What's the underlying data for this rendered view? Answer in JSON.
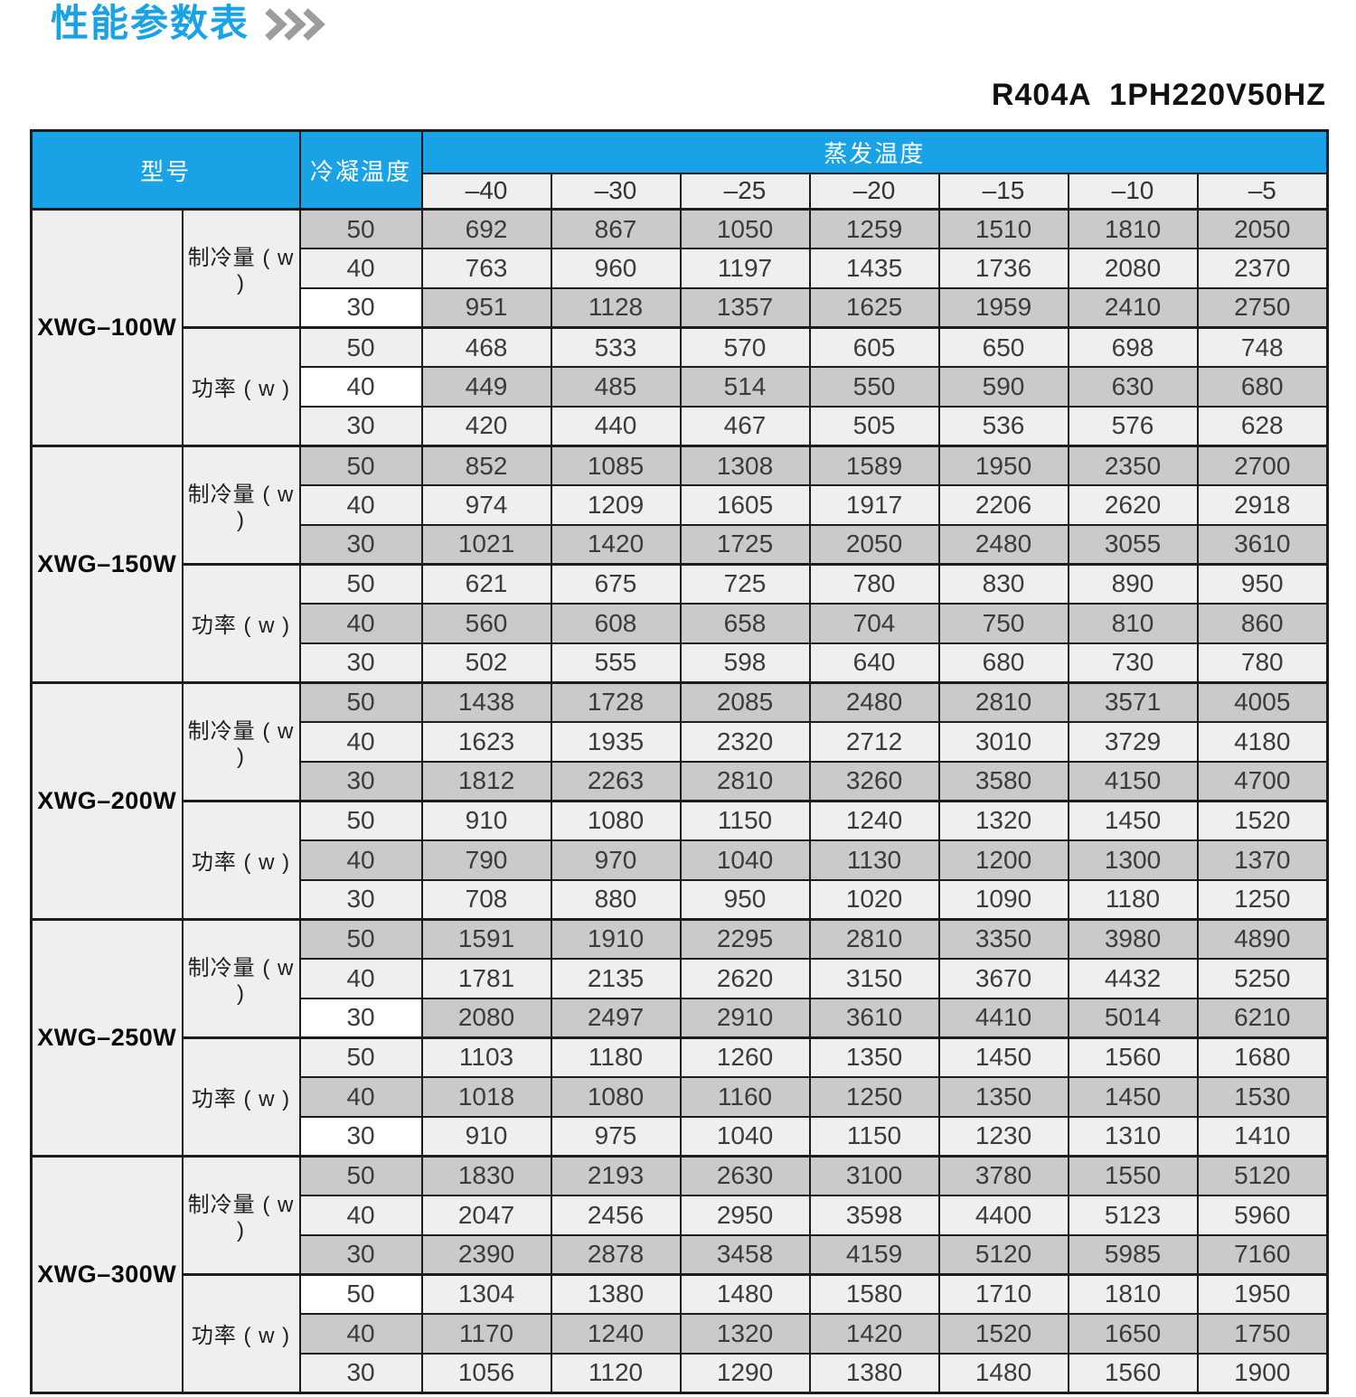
{
  "page": {
    "title": "性能参数表",
    "subtitle": "R404A  1PH220V50HZ"
  },
  "icons": {
    "title_chevrons": "triple-chevron-right"
  },
  "colors": {
    "accent_blue": "#19a3e6",
    "chevron_gray": "#9c9c9c",
    "row_gray": "#cacaca",
    "row_light": "#f0efef",
    "cell_white": "#ffffff",
    "border_black": "#1c1c1c"
  },
  "table": {
    "header": {
      "model": "型号",
      "condensing_temp": "冷凝温度",
      "evaporating_temp": "蒸发温度",
      "evap_temps": [
        "–40",
        "–30",
        "–25",
        "–20",
        "–15",
        "–10",
        "–5"
      ]
    },
    "models": [
      {
        "name": "XWG–100W",
        "cooling": {
          "label": "制冷量 ( w )",
          "rows": [
            {
              "temp": "50",
              "values": [
                692,
                867,
                1050,
                1259,
                1510,
                1810,
                2050
              ]
            },
            {
              "temp": "40",
              "values": [
                763,
                960,
                1197,
                1435,
                1736,
                2080,
                2370
              ]
            },
            {
              "temp": "30",
              "white_temp": true,
              "values": [
                951,
                1128,
                1357,
                1625,
                1959,
                2410,
                2750
              ]
            }
          ]
        },
        "power": {
          "label": "功率 ( w )",
          "rows": [
            {
              "temp": "50",
              "values": [
                468,
                533,
                570,
                605,
                650,
                698,
                748
              ]
            },
            {
              "temp": "40",
              "white_temp": true,
              "values": [
                449,
                485,
                514,
                550,
                590,
                630,
                680
              ]
            },
            {
              "temp": "30",
              "values": [
                420,
                440,
                467,
                505,
                536,
                576,
                628
              ]
            }
          ]
        }
      },
      {
        "name": "XWG–150W",
        "cooling": {
          "label": "制冷量 ( w )",
          "rows": [
            {
              "temp": "50",
              "values": [
                852,
                1085,
                1308,
                1589,
                1950,
                2350,
                2700
              ]
            },
            {
              "temp": "40",
              "values": [
                974,
                1209,
                1605,
                1917,
                2206,
                2620,
                2918
              ]
            },
            {
              "temp": "30",
              "values": [
                1021,
                1420,
                1725,
                2050,
                2480,
                3055,
                3610
              ]
            }
          ]
        },
        "power": {
          "label": "功率 ( w )",
          "rows": [
            {
              "temp": "50",
              "values": [
                621,
                675,
                725,
                780,
                830,
                890,
                950
              ]
            },
            {
              "temp": "40",
              "values": [
                560,
                608,
                658,
                704,
                750,
                810,
                860
              ]
            },
            {
              "temp": "30",
              "values": [
                502,
                555,
                598,
                640,
                680,
                730,
                780
              ]
            }
          ]
        }
      },
      {
        "name": "XWG–200W",
        "cooling": {
          "label": "制冷量 ( w )",
          "rows": [
            {
              "temp": "50",
              "values": [
                1438,
                1728,
                2085,
                2480,
                2810,
                3571,
                4005
              ]
            },
            {
              "temp": "40",
              "values": [
                1623,
                1935,
                2320,
                2712,
                3010,
                3729,
                4180
              ]
            },
            {
              "temp": "30",
              "values": [
                1812,
                2263,
                2810,
                3260,
                3580,
                4150,
                4700
              ]
            }
          ]
        },
        "power": {
          "label": "功率 ( w )",
          "rows": [
            {
              "temp": "50",
              "values": [
                910,
                1080,
                1150,
                1240,
                1320,
                1450,
                1520
              ]
            },
            {
              "temp": "40",
              "values": [
                790,
                970,
                1040,
                1130,
                1200,
                1300,
                1370
              ]
            },
            {
              "temp": "30",
              "values": [
                708,
                880,
                950,
                1020,
                1090,
                1180,
                1250
              ]
            }
          ]
        }
      },
      {
        "name": "XWG–250W",
        "cooling": {
          "label": "制冷量 ( w )",
          "rows": [
            {
              "temp": "50",
              "values": [
                1591,
                1910,
                2295,
                2810,
                3350,
                3980,
                4890
              ]
            },
            {
              "temp": "40",
              "values": [
                1781,
                2135,
                2620,
                3150,
                3670,
                4432,
                5250
              ]
            },
            {
              "temp": "30",
              "white_temp": true,
              "values": [
                2080,
                2497,
                2910,
                3610,
                4410,
                5014,
                6210
              ]
            }
          ]
        },
        "power": {
          "label": "功率 ( w )",
          "rows": [
            {
              "temp": "50",
              "values": [
                1103,
                1180,
                1260,
                1350,
                1450,
                1560,
                1680
              ]
            },
            {
              "temp": "40",
              "values": [
                1018,
                1080,
                1160,
                1250,
                1350,
                1450,
                1530
              ]
            },
            {
              "temp": "30",
              "white_temp": true,
              "values": [
                910,
                975,
                1040,
                1150,
                1230,
                1310,
                1410
              ]
            }
          ]
        }
      },
      {
        "name": "XWG–300W",
        "cooling": {
          "label": "制冷量 ( w )",
          "rows": [
            {
              "temp": "50",
              "values": [
                1830,
                2193,
                2630,
                3100,
                3780,
                1550,
                5120
              ]
            },
            {
              "temp": "40",
              "values": [
                2047,
                2456,
                2950,
                3598,
                4400,
                5123,
                5960
              ]
            },
            {
              "temp": "30",
              "values": [
                2390,
                2878,
                3458,
                4159,
                5120,
                5985,
                7160
              ]
            }
          ]
        },
        "power": {
          "label": "功率 ( w )",
          "rows": [
            {
              "temp": "50",
              "white_temp": true,
              "values": [
                1304,
                1380,
                1480,
                1580,
                1710,
                1810,
                1950
              ]
            },
            {
              "temp": "40",
              "values": [
                1170,
                1240,
                1320,
                1420,
                1520,
                1650,
                1750
              ]
            },
            {
              "temp": "30",
              "values": [
                1056,
                1120,
                1290,
                1380,
                1480,
                1560,
                1900
              ]
            }
          ]
        }
      }
    ]
  }
}
